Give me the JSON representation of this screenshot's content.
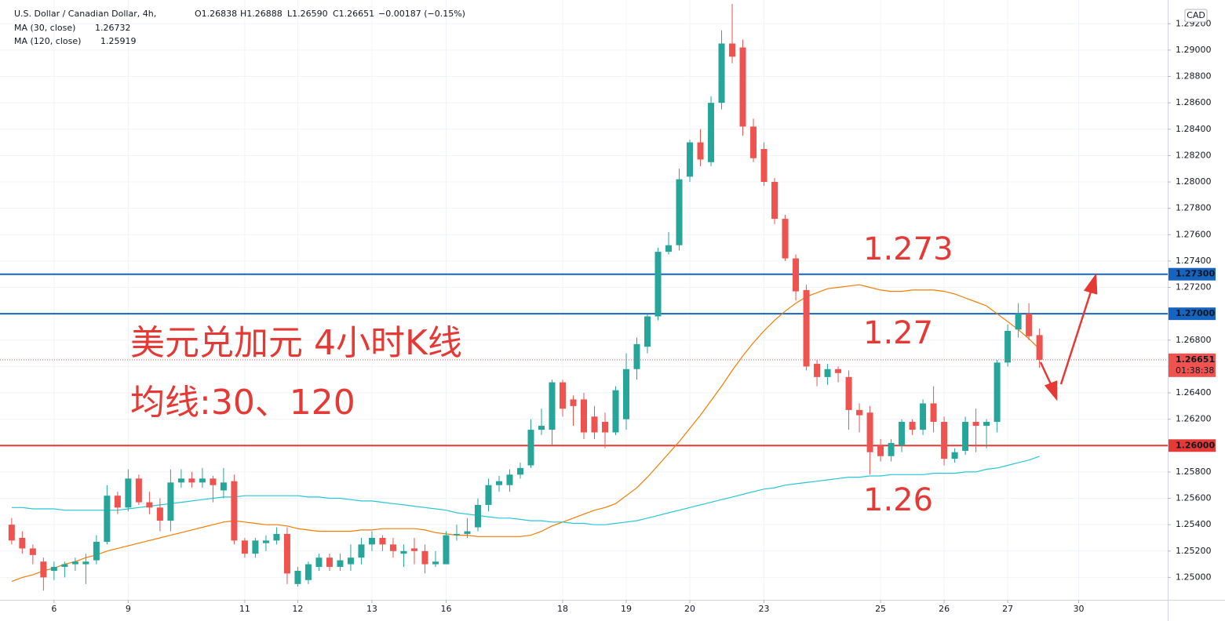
{
  "chart_data": {
    "type": "candlestick",
    "title": "U.S. Dollar / Canadian Dollar, 4h,",
    "ohlc_labels": [
      "O1.26838",
      "H1.26888",
      "L1.26590",
      "C1.26651",
      "−0.00187 (−0.15%)"
    ],
    "currency": "CAD",
    "up_color": "#26a69a",
    "down_color": "#ef5350",
    "xlim": [
      -1.1,
      109.1
    ],
    "ylim": [
      1.2483,
      1.2938
    ],
    "grid": true,
    "xticks": [
      {
        "value": 4,
        "label": "6"
      },
      {
        "value": 11,
        "label": "9"
      },
      {
        "value": 22,
        "label": "11"
      },
      {
        "value": 27,
        "label": "12"
      },
      {
        "value": 34,
        "label": "13"
      },
      {
        "value": 41,
        "label": "16"
      },
      {
        "value": 52,
        "label": "18"
      },
      {
        "value": 58,
        "label": "19"
      },
      {
        "value": 64,
        "label": "20"
      },
      {
        "value": 71,
        "label": "23"
      },
      {
        "value": 82,
        "label": "25"
      },
      {
        "value": 88,
        "label": "26"
      },
      {
        "value": 94,
        "label": "27"
      },
      {
        "value": 100.7,
        "label": "30"
      }
    ],
    "yticks": [
      {
        "value": 1.25,
        "label": "1.25000"
      },
      {
        "value": 1.252,
        "label": "1.25200"
      },
      {
        "value": 1.254,
        "label": "1.25400"
      },
      {
        "value": 1.256,
        "label": "1.25600"
      },
      {
        "value": 1.258,
        "label": "1.25800"
      },
      {
        "value": 1.26,
        "label": "1.26000"
      },
      {
        "value": 1.262,
        "label": "1.26200"
      },
      {
        "value": 1.264,
        "label": "1.26400"
      },
      {
        "value": 1.266,
        "label": "1.26600"
      },
      {
        "value": 1.268,
        "label": "1.26800"
      },
      {
        "value": 1.27,
        "label": "1.27000"
      },
      {
        "value": 1.272,
        "label": "1.27200"
      },
      {
        "value": 1.274,
        "label": "1.27400"
      },
      {
        "value": 1.276,
        "label": "1.27600"
      },
      {
        "value": 1.278,
        "label": "1.27800"
      },
      {
        "value": 1.28,
        "label": "1.28000"
      },
      {
        "value": 1.282,
        "label": "1.28200"
      },
      {
        "value": 1.284,
        "label": "1.28400"
      },
      {
        "value": 1.286,
        "label": "1.28600"
      },
      {
        "value": 1.288,
        "label": "1.28800"
      },
      {
        "value": 1.29,
        "label": "1.29000"
      },
      {
        "value": 1.292,
        "label": "1.29200"
      }
    ],
    "open": [
      1.254,
      1.253,
      1.2522,
      1.2512,
      1.2505,
      1.2508,
      1.251,
      1.251,
      1.2513,
      1.2527,
      1.2562,
      1.2553,
      1.2575,
      1.2557,
      1.2553,
      1.2543,
      1.2572,
      1.2575,
      1.2572,
      1.2575,
      1.2566,
      1.2573,
      1.2528,
      1.2518,
      1.2526,
      1.2528,
      1.2533,
      1.2495,
      1.2498,
      1.2508,
      1.2515,
      1.2508,
      1.251,
      1.2515,
      1.2525,
      1.253,
      1.2525,
      1.2518,
      1.2522,
      1.252,
      1.251,
      1.251,
      1.2532,
      1.2533,
      1.2538,
      1.2555,
      1.257,
      1.257,
      1.2578,
      1.2585,
      1.2612,
      1.2612,
      1.2648,
      1.2635,
      1.2635,
      1.2622,
      1.2618,
      1.261,
      1.262,
      1.2658,
      1.2675,
      1.2698,
      1.2747,
      1.2752,
      1.2804,
      1.283,
      1.2815,
      1.286,
      1.2905,
      1.2902,
      1.2842,
      1.2825,
      1.28,
      1.2772,
      1.2742,
      1.2718,
      1.2662,
      1.2652,
      1.2658,
      1.2652,
      1.2627,
      1.2625,
      1.26,
      1.2592,
      1.26,
      1.2618,
      1.2612,
      1.2632,
      1.2618,
      1.259,
      1.2596,
      1.2618,
      1.2615,
      1.2618,
      1.2663,
      1.2688,
      1.27,
      1.26838
    ],
    "high": [
      1.2545,
      1.2535,
      1.2525,
      1.2515,
      1.2512,
      1.2512,
      1.2515,
      1.2518,
      1.2532,
      1.257,
      1.2565,
      1.2582,
      1.2578,
      1.2565,
      1.256,
      1.2582,
      1.2582,
      1.258,
      1.2583,
      1.2577,
      1.2583,
      1.2578,
      1.253,
      1.253,
      1.2532,
      1.2538,
      1.2538,
      1.2508,
      1.2512,
      1.2518,
      1.2518,
      1.2518,
      1.2525,
      1.253,
      1.2535,
      1.2532,
      1.253,
      1.2525,
      1.253,
      1.2525,
      1.252,
      1.2535,
      1.254,
      1.2545,
      1.256,
      1.2575,
      1.2577,
      1.2582,
      1.2587,
      1.262,
      1.2628,
      1.265,
      1.265,
      1.2638,
      1.264,
      1.263,
      1.2625,
      1.2645,
      1.267,
      1.2682,
      1.27,
      1.275,
      1.2762,
      1.281,
      1.2832,
      1.284,
      1.2865,
      1.2915,
      1.2935,
      1.2908,
      1.2848,
      1.283,
      1.2803,
      1.2775,
      1.2745,
      1.2722,
      1.2665,
      1.2662,
      1.266,
      1.2657,
      1.2632,
      1.263,
      1.2605,
      1.2605,
      1.262,
      1.262,
      1.2635,
      1.2645,
      1.2622,
      1.2598,
      1.2622,
      1.2628,
      1.262,
      1.2665,
      1.2692,
      1.2708,
      1.2708,
      1.26888
    ],
    "low": [
      1.2525,
      1.2518,
      1.251,
      1.249,
      1.2498,
      1.25,
      1.2505,
      1.2495,
      1.251,
      1.2525,
      1.2548,
      1.255,
      1.2555,
      1.2548,
      1.2535,
      1.2535,
      1.2568,
      1.2568,
      1.2568,
      1.2557,
      1.256,
      1.2525,
      1.2515,
      1.2515,
      1.252,
      1.2525,
      1.2495,
      1.2493,
      1.2495,
      1.2505,
      1.2505,
      1.2505,
      1.2505,
      1.251,
      1.252,
      1.252,
      1.2515,
      1.2508,
      1.251,
      1.2503,
      1.2508,
      1.251,
      1.2528,
      1.253,
      1.2535,
      1.255,
      1.2565,
      1.2565,
      1.2575,
      1.2583,
      1.2608,
      1.26,
      1.2622,
      1.2615,
      1.2605,
      1.2605,
      1.2598,
      1.2608,
      1.2612,
      1.265,
      1.267,
      1.2695,
      1.2745,
      1.2748,
      1.28,
      1.2812,
      1.2812,
      1.2855,
      1.289,
      1.2835,
      1.2815,
      1.2797,
      1.2768,
      1.274,
      1.271,
      1.2657,
      1.2645,
      1.2646,
      1.2648,
      1.2612,
      1.261,
      1.2578,
      1.2588,
      1.2588,
      1.2595,
      1.2608,
      1.2608,
      1.261,
      1.2585,
      1.2587,
      1.2593,
      1.2595,
      1.2598,
      1.261,
      1.266,
      1.2682,
      1.268,
      1.2659
    ],
    "close": [
      1.2528,
      1.2522,
      1.2517,
      1.25,
      1.2508,
      1.251,
      1.2512,
      1.2512,
      1.2527,
      1.2562,
      1.2553,
      1.2575,
      1.2557,
      1.2553,
      1.2543,
      1.2572,
      1.2575,
      1.2572,
      1.2575,
      1.257,
      1.2572,
      1.2528,
      1.2518,
      1.2528,
      1.2528,
      1.2533,
      1.2503,
      1.2505,
      1.251,
      1.2515,
      1.2508,
      1.2513,
      1.2515,
      1.2525,
      1.253,
      1.2525,
      1.252,
      1.252,
      1.252,
      1.251,
      1.2512,
      1.2532,
      1.2533,
      1.2535,
      1.2555,
      1.257,
      1.2573,
      1.2578,
      1.2583,
      1.2612,
      1.2615,
      1.2648,
      1.2628,
      1.263,
      1.261,
      1.261,
      1.261,
      1.2642,
      1.2658,
      1.2677,
      1.2698,
      1.2747,
      1.2752,
      1.2802,
      1.283,
      1.2817,
      1.286,
      1.2905,
      1.2895,
      1.2842,
      1.2818,
      1.28,
      1.2772,
      1.2742,
      1.2717,
      1.266,
      1.2652,
      1.2658,
      1.2655,
      1.2627,
      1.2623,
      1.2595,
      1.2592,
      1.2602,
      1.2618,
      1.2612,
      1.2632,
      1.2618,
      1.259,
      1.2595,
      1.2618,
      1.2615,
      1.2618,
      1.2663,
      1.2687,
      1.27,
      1.2683,
      1.26651
    ],
    "series": [
      {
        "name": "MA (30, close)",
        "color": "#f57c00",
        "values": [
          1.2497,
          1.25,
          1.2502,
          1.2505,
          1.2507,
          1.251,
          1.2512,
          1.2515,
          1.2517,
          1.252,
          1.2522,
          1.2524,
          1.2526,
          1.2528,
          1.253,
          1.2532,
          1.2534,
          1.2536,
          1.2538,
          1.254,
          1.2542,
          1.2543,
          1.2542,
          1.2541,
          1.254,
          1.254,
          1.2539,
          1.2537,
          1.2536,
          1.2535,
          1.2535,
          1.2535,
          1.2535,
          1.2536,
          1.2536,
          1.2537,
          1.2537,
          1.2537,
          1.2537,
          1.2536,
          1.2534,
          1.2533,
          1.2532,
          1.2532,
          1.2531,
          1.2531,
          1.2531,
          1.2531,
          1.2531,
          1.2532,
          1.2535,
          1.2539,
          1.2542,
          1.2545,
          1.2548,
          1.2551,
          1.2553,
          1.2556,
          1.2562,
          1.2568,
          1.2576,
          1.2585,
          1.2594,
          1.2603,
          1.2613,
          1.2623,
          1.2634,
          1.2645,
          1.2657,
          1.2668,
          1.2678,
          1.2687,
          1.2695,
          1.2702,
          1.2708,
          1.2713,
          1.2716,
          1.2719,
          1.272,
          1.2721,
          1.2722,
          1.272,
          1.2718,
          1.2717,
          1.2717,
          1.2718,
          1.2718,
          1.2718,
          1.2717,
          1.2715,
          1.2712,
          1.2709,
          1.2706,
          1.27,
          1.2694,
          1.2688,
          1.2681,
          1.26732
        ]
      },
      {
        "name": "MA (120, close)",
        "color": "#26c6da",
        "values": [
          1.2553,
          1.2553,
          1.2552,
          1.2552,
          1.2552,
          1.2551,
          1.2551,
          1.2551,
          1.2551,
          1.2551,
          1.2551,
          1.2552,
          1.2553,
          1.2554,
          1.2555,
          1.2556,
          1.2557,
          1.2558,
          1.2559,
          1.256,
          1.2561,
          1.2561,
          1.2562,
          1.2562,
          1.2562,
          1.2562,
          1.2562,
          1.2562,
          1.2561,
          1.2561,
          1.256,
          1.256,
          1.2559,
          1.2558,
          1.2558,
          1.2557,
          1.2556,
          1.2555,
          1.2554,
          1.2553,
          1.2552,
          1.2551,
          1.2549,
          1.2548,
          1.2547,
          1.2546,
          1.2545,
          1.2545,
          1.2544,
          1.2543,
          1.2543,
          1.2542,
          1.2542,
          1.2541,
          1.2541,
          1.254,
          1.254,
          1.2541,
          1.2542,
          1.2543,
          1.2545,
          1.2547,
          1.2549,
          1.2551,
          1.2553,
          1.2555,
          1.2557,
          1.2559,
          1.2561,
          1.2563,
          1.2565,
          1.2567,
          1.2568,
          1.257,
          1.2571,
          1.2572,
          1.2573,
          1.2574,
          1.2575,
          1.2576,
          1.2576,
          1.2577,
          1.2577,
          1.2578,
          1.2578,
          1.2578,
          1.2578,
          1.2579,
          1.2579,
          1.2579,
          1.258,
          1.258,
          1.2582,
          1.2583,
          1.2585,
          1.2587,
          1.2589,
          1.25919
        ]
      }
    ],
    "hlines": [
      {
        "value": 1.273,
        "label": "1.27300",
        "color": "#1565c0"
      },
      {
        "value": 1.27,
        "label": "1.27000",
        "color": "#1565c0"
      },
      {
        "value": 1.26,
        "label": "1.26000",
        "color": "#e53935"
      }
    ],
    "countdown": "01:38:38",
    "annotations": [
      "1.273",
      "1.27",
      "1.26",
      "美元兑加元 4小时K线",
      "均线:30、120"
    ]
  }
}
